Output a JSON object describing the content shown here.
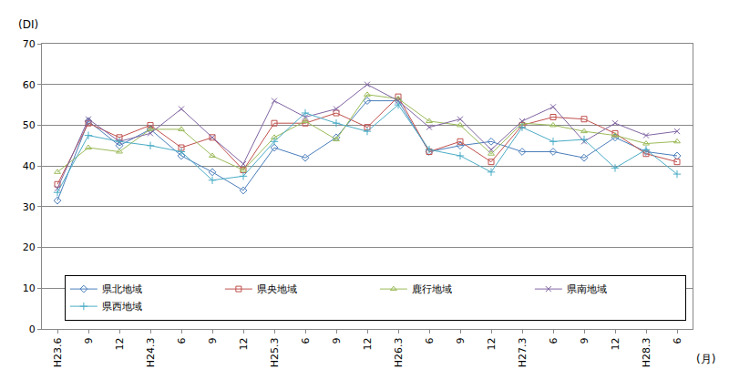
{
  "chart_data": {
    "type": "line",
    "ylabel": "(DI)",
    "xlabel": "(月)",
    "categories": [
      "H23.6",
      "9",
      "12",
      "H24.3",
      "6",
      "9",
      "12",
      "H25.3",
      "6",
      "9",
      "12",
      "H26.3",
      "6",
      "9",
      "12",
      "H27.3",
      "6",
      "9",
      "12",
      "H28.3",
      "6"
    ],
    "series": [
      {
        "name": "県北地域",
        "color": "#4a7ebb",
        "marker": "diamond-open",
        "values": [
          31.5,
          51,
          45,
          49,
          42.5,
          38.5,
          34,
          44.5,
          42,
          47,
          56,
          56,
          43.5,
          45,
          46,
          43.5,
          43.5,
          42,
          47,
          43.5,
          42.5
        ]
      },
      {
        "name": "県央地域",
        "color": "#c0504d",
        "marker": "square-open",
        "values": [
          35.5,
          50.5,
          47,
          50,
          44.5,
          47,
          39,
          50.5,
          50.5,
          53,
          49.5,
          57,
          43.5,
          46,
          41,
          50,
          52,
          51.5,
          48,
          43,
          41
        ]
      },
      {
        "name": "鹿行地域",
        "color": "#9bbb59",
        "marker": "triangle-up-open",
        "values": [
          38.5,
          44.5,
          43.5,
          49,
          49,
          42.5,
          39,
          47,
          51,
          46.5,
          57.5,
          56.5,
          51,
          50,
          43,
          50.5,
          50,
          48.5,
          47.5,
          45.5,
          46
        ]
      },
      {
        "name": "県南地域",
        "color": "#8064a2",
        "marker": "x-thin-open",
        "values": [
          34.5,
          51.5,
          46,
          48,
          54,
          47,
          40.5,
          56,
          52,
          54,
          60,
          56,
          49.5,
          51.5,
          44,
          51,
          54.5,
          46,
          50.5,
          47.5,
          48.5
        ]
      },
      {
        "name": "県西地域",
        "color": "#4bacc6",
        "marker": "cross-thin-open",
        "values": [
          33.5,
          47.5,
          46,
          45,
          43.5,
          36.5,
          37.5,
          46,
          53,
          50.5,
          48.5,
          55,
          44,
          42.5,
          38.5,
          49.5,
          46,
          46.5,
          39.5,
          44,
          38
        ]
      }
    ],
    "ylim": [
      0,
      70
    ],
    "yticks": [
      0,
      10,
      20,
      30,
      40,
      50,
      60,
      70
    ],
    "grid": true,
    "legend": "lower right"
  }
}
